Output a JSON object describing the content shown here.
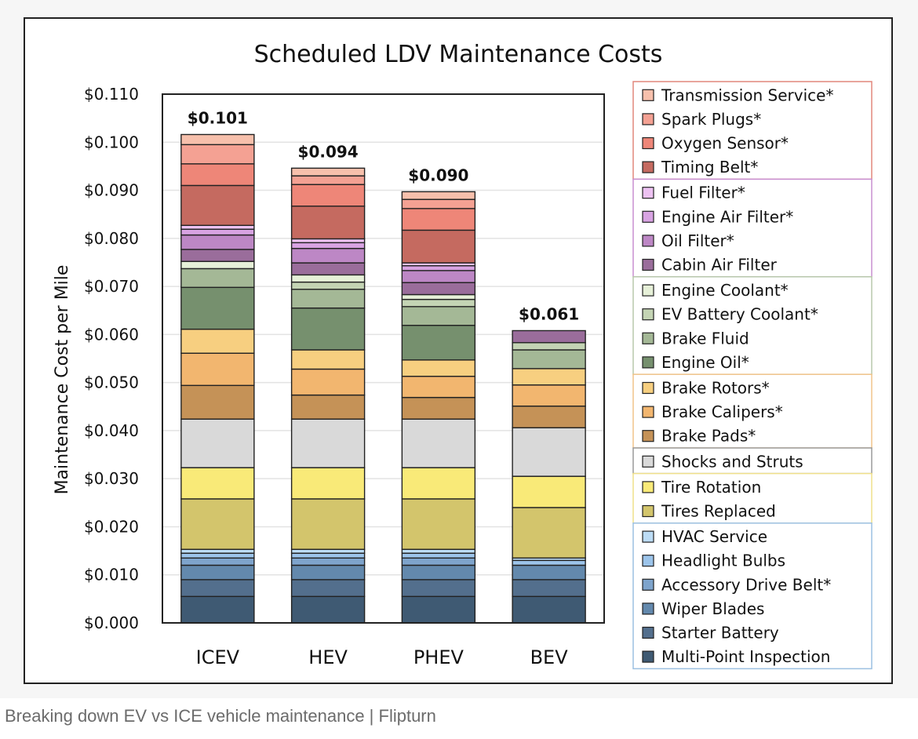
{
  "caption": "Breaking down EV vs ICE vehicle maintenance | Flipturn",
  "chart_data": {
    "type": "bar",
    "stacked": true,
    "title": "Scheduled LDV Maintenance Costs",
    "xlabel": "",
    "ylabel": "Maintenance Cost per Mile",
    "ylim": [
      0,
      0.11
    ],
    "yticks": [
      "$0.000",
      "$0.010",
      "$0.020",
      "$0.030",
      "$0.040",
      "$0.050",
      "$0.060",
      "$0.070",
      "$0.080",
      "$0.090",
      "$0.100",
      "$0.110"
    ],
    "grid": true,
    "legend_position": "right",
    "categories": [
      "ICEV",
      "HEV",
      "PHEV",
      "BEV"
    ],
    "totals": [
      "$0.101",
      "$0.094",
      "$0.090",
      "$0.061"
    ],
    "series": [
      {
        "name": "Multi-Point Inspection",
        "color": "#3f5a73",
        "values": [
          0.0055,
          0.0055,
          0.0055,
          0.0055
        ]
      },
      {
        "name": "Starter Battery",
        "color": "#536f8d",
        "values": [
          0.0035,
          0.0035,
          0.0035,
          0.0035
        ]
      },
      {
        "name": "Wiper Blades",
        "color": "#6389ad",
        "values": [
          0.003,
          0.003,
          0.003,
          0.003
        ]
      },
      {
        "name": "Accessory Drive Belt*",
        "color": "#7ea4cc",
        "values": [
          0.0015,
          0.0015,
          0.0015,
          0.0
        ]
      },
      {
        "name": "Headlight Bulbs",
        "color": "#9cc4ea",
        "values": [
          0.001,
          0.001,
          0.001,
          0.001
        ]
      },
      {
        "name": "HVAC Service",
        "color": "#bcdcf5",
        "values": [
          0.0008,
          0.0008,
          0.0008,
          0.0005
        ]
      },
      {
        "name": "Tires Replaced",
        "color": "#d3c56c",
        "values": [
          0.0105,
          0.0105,
          0.0105,
          0.0105
        ]
      },
      {
        "name": "Tire Rotation",
        "color": "#f9ea78",
        "values": [
          0.0065,
          0.0065,
          0.0065,
          0.0065
        ]
      },
      {
        "name": "Shocks and Struts",
        "color": "#d9d9d9",
        "values": [
          0.0101,
          0.0101,
          0.0101,
          0.0101
        ]
      },
      {
        "name": "Brake Pads*",
        "color": "#c59257",
        "values": [
          0.007,
          0.005,
          0.0045,
          0.0045
        ]
      },
      {
        "name": "Brake Calipers*",
        "color": "#f2b66f",
        "values": [
          0.0067,
          0.0054,
          0.0044,
          0.0044
        ]
      },
      {
        "name": "Brake Rotors*",
        "color": "#f7cf80",
        "values": [
          0.005,
          0.004,
          0.0034,
          0.0034
        ]
      },
      {
        "name": "Engine Oil*",
        "color": "#76906e",
        "values": [
          0.0087,
          0.0087,
          0.0072,
          0.0
        ]
      },
      {
        "name": "Brake Fluid",
        "color": "#a4b896",
        "values": [
          0.0039,
          0.0039,
          0.0039,
          0.0039
        ]
      },
      {
        "name": "EV Battery Coolant*",
        "color": "#c4d4b4",
        "values": [
          0.0,
          0.0015,
          0.0015,
          0.0015
        ]
      },
      {
        "name": "Engine Coolant*",
        "color": "#e6f0d8",
        "values": [
          0.0015,
          0.0015,
          0.001,
          0.0
        ]
      },
      {
        "name": "Cabin Air Filter",
        "color": "#9a6d9b",
        "values": [
          0.0025,
          0.0025,
          0.0025,
          0.0025
        ]
      },
      {
        "name": "Oil Filter*",
        "color": "#bd87c5",
        "values": [
          0.003,
          0.003,
          0.0025,
          0.0
        ]
      },
      {
        "name": "Engine Air Filter*",
        "color": "#d8a3e2",
        "values": [
          0.0012,
          0.0012,
          0.001,
          0.0
        ]
      },
      {
        "name": "Fuel Filter*",
        "color": "#edc2f2",
        "values": [
          0.0008,
          0.0008,
          0.0006,
          0.0
        ]
      },
      {
        "name": "Timing Belt*",
        "color": "#c56a60",
        "values": [
          0.0083,
          0.0068,
          0.0068,
          0.0
        ]
      },
      {
        "name": "Oxygen Sensor*",
        "color": "#ee8678",
        "values": [
          0.0045,
          0.0045,
          0.0045,
          0.0
        ]
      },
      {
        "name": "Spark Plugs*",
        "color": "#f4a193",
        "values": [
          0.004,
          0.0018,
          0.0019,
          0.0
        ]
      },
      {
        "name": "Transmission Service*",
        "color": "#f7c0ac",
        "values": [
          0.0021,
          0.0016,
          0.0016,
          0.0
        ]
      }
    ],
    "legend_groups": [
      {
        "border": "#e2877c",
        "items": [
          "Transmission Service*",
          "Spark Plugs*",
          "Oxygen Sensor*",
          "Timing Belt*"
        ]
      },
      {
        "border": "#c88fd1",
        "items": [
          "Fuel Filter*",
          "Engine Air Filter*",
          "Oil Filter*",
          "Cabin Air Filter"
        ]
      },
      {
        "border": "#b9c9ac",
        "items": [
          "Engine Coolant*",
          "EV Battery Coolant*",
          "Brake Fluid",
          "Engine Oil*"
        ]
      },
      {
        "border": "#f0c48a",
        "items": [
          "Brake Rotors*",
          "Brake Calipers*",
          "Brake Pads*"
        ]
      },
      {
        "border": "#9a9a9a",
        "items": [
          "Shocks and Struts"
        ]
      },
      {
        "border": "#efe08a",
        "items": [
          "Tire Rotation",
          "Tires Replaced"
        ]
      },
      {
        "border": "#9cc0e2",
        "items": [
          "HVAC Service",
          "Headlight Bulbs",
          "Accessory Drive Belt*",
          "Wiper Blades",
          "Starter Battery",
          "Multi-Point Inspection"
        ]
      }
    ]
  }
}
